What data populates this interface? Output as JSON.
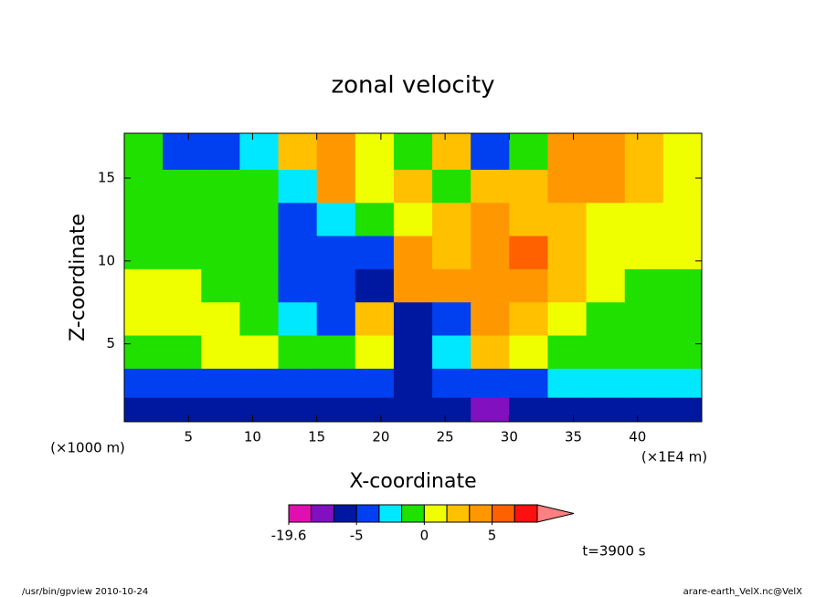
{
  "chart_data": {
    "type": "heatmap",
    "title": "zonal velocity",
    "x_label": "X-coordinate",
    "y_label": "Z-coordinate",
    "x_unit": "(×1E4 m)",
    "y_unit": "(×1000 m)",
    "time_label": "t=3900 s",
    "footer_left": "/usr/bin/gpview  2010-10-24",
    "footer_right": "arare-earth_VelX.nc@VelX",
    "xlim": [
      0,
      45
    ],
    "ylim": [
      0.3,
      17.7
    ],
    "xticks": [
      5,
      10,
      15,
      20,
      25,
      30,
      35,
      40
    ],
    "yticks": [
      5,
      10,
      15
    ],
    "x": [
      1.5,
      4.5,
      7.5,
      10.5,
      13.5,
      16.5,
      19.5,
      22.5,
      25.5,
      28.5,
      31.5,
      34.5,
      37.5,
      40.5,
      43.5
    ],
    "z": [
      16.5,
      14.5,
      12.5,
      10.5,
      8.5,
      6.5,
      4.5,
      2.5,
      1.0
    ],
    "values": [
      [
        -0.5,
        -3,
        -3,
        -1.5,
        1.5,
        3,
        0.5,
        -0.5,
        1.5,
        -3,
        -0.5,
        3,
        3,
        1.5,
        0.5
      ],
      [
        -0.5,
        -0.5,
        -0.5,
        -0.5,
        -1.5,
        3,
        0.5,
        1.5,
        -0.5,
        1.5,
        1.5,
        3,
        3,
        1.5,
        0.5
      ],
      [
        -0.5,
        -0.5,
        -0.5,
        -0.5,
        -3,
        -1.5,
        -0.5,
        0.5,
        1.5,
        3,
        1.5,
        1.5,
        0.5,
        0.5,
        0.5
      ],
      [
        -0.5,
        -0.5,
        -0.5,
        -0.5,
        -3,
        -3,
        -3,
        3,
        1.5,
        3,
        7,
        1.5,
        0.5,
        0.5,
        0.5
      ],
      [
        0.5,
        0.5,
        -0.5,
        -0.5,
        -3,
        -3,
        -7,
        3,
        3,
        3,
        3,
        1.5,
        0.5,
        -0.5,
        -0.5
      ],
      [
        0.5,
        0.5,
        0.5,
        -0.5,
        -1.5,
        -3,
        1.5,
        -7,
        -3,
        3,
        1.5,
        0.5,
        -0.5,
        -0.5,
        -0.5
      ],
      [
        -0.5,
        -0.5,
        0.5,
        0.5,
        -0.5,
        -0.5,
        0.5,
        -7,
        -1.5,
        1.5,
        0.5,
        -0.5,
        -0.5,
        -0.5,
        -0.5
      ],
      [
        -3,
        -3,
        -3,
        -3,
        -3,
        -3,
        -3,
        -7,
        -3,
        -3,
        -3,
        -1.5,
        -1.5,
        -1.5,
        -1.5
      ],
      [
        -7,
        -7,
        -7,
        -7,
        -7,
        -7,
        -7,
        -7,
        -7,
        -12,
        -7,
        -7,
        -7,
        -7,
        -7
      ]
    ],
    "levels": [
      -19.6,
      -15,
      -10,
      -5,
      -2,
      -1,
      0,
      1,
      2,
      5,
      10,
      15
    ],
    "colors": [
      "#e010b0",
      "#8010c0",
      "#0018a0",
      "#0040f0",
      "#00e8ff",
      "#20e000",
      "#f0ff00",
      "#ffc000",
      "#ff9800",
      "#ff6000",
      "#ff1010"
    ],
    "extend_color": "#ff8080",
    "colorbar_ticks": [
      -19.6,
      -5,
      0,
      5
    ]
  }
}
